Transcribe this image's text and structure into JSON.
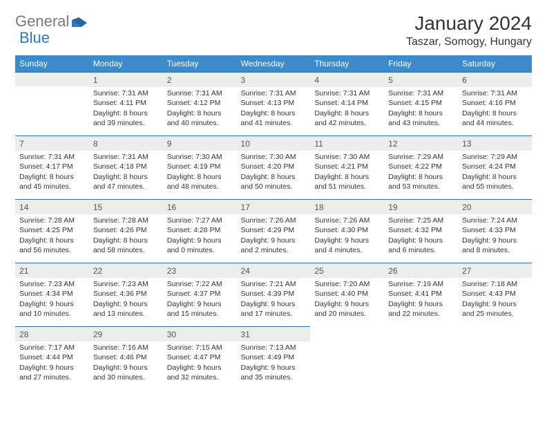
{
  "brand": {
    "part1": "General",
    "part2": "Blue"
  },
  "title": "January 2024",
  "location": "Taszar, Somogy, Hungary",
  "colors": {
    "header_bg": "#3c8ac9",
    "rule": "#2f6ea5",
    "daynum_bg": "#eceded",
    "brand_gray": "#7a7a7a",
    "brand_blue": "#2f78bf"
  },
  "weekdays": [
    "Sunday",
    "Monday",
    "Tuesday",
    "Wednesday",
    "Thursday",
    "Friday",
    "Saturday"
  ],
  "weeks": [
    [
      null,
      {
        "n": "1",
        "sr": "Sunrise: 7:31 AM",
        "ss": "Sunset: 4:11 PM",
        "d1": "Daylight: 8 hours",
        "d2": "and 39 minutes."
      },
      {
        "n": "2",
        "sr": "Sunrise: 7:31 AM",
        "ss": "Sunset: 4:12 PM",
        "d1": "Daylight: 8 hours",
        "d2": "and 40 minutes."
      },
      {
        "n": "3",
        "sr": "Sunrise: 7:31 AM",
        "ss": "Sunset: 4:13 PM",
        "d1": "Daylight: 8 hours",
        "d2": "and 41 minutes."
      },
      {
        "n": "4",
        "sr": "Sunrise: 7:31 AM",
        "ss": "Sunset: 4:14 PM",
        "d1": "Daylight: 8 hours",
        "d2": "and 42 minutes."
      },
      {
        "n": "5",
        "sr": "Sunrise: 7:31 AM",
        "ss": "Sunset: 4:15 PM",
        "d1": "Daylight: 8 hours",
        "d2": "and 43 minutes."
      },
      {
        "n": "6",
        "sr": "Sunrise: 7:31 AM",
        "ss": "Sunset: 4:16 PM",
        "d1": "Daylight: 8 hours",
        "d2": "and 44 minutes."
      }
    ],
    [
      {
        "n": "7",
        "sr": "Sunrise: 7:31 AM",
        "ss": "Sunset: 4:17 PM",
        "d1": "Daylight: 8 hours",
        "d2": "and 45 minutes."
      },
      {
        "n": "8",
        "sr": "Sunrise: 7:31 AM",
        "ss": "Sunset: 4:18 PM",
        "d1": "Daylight: 8 hours",
        "d2": "and 47 minutes."
      },
      {
        "n": "9",
        "sr": "Sunrise: 7:30 AM",
        "ss": "Sunset: 4:19 PM",
        "d1": "Daylight: 8 hours",
        "d2": "and 48 minutes."
      },
      {
        "n": "10",
        "sr": "Sunrise: 7:30 AM",
        "ss": "Sunset: 4:20 PM",
        "d1": "Daylight: 8 hours",
        "d2": "and 50 minutes."
      },
      {
        "n": "11",
        "sr": "Sunrise: 7:30 AM",
        "ss": "Sunset: 4:21 PM",
        "d1": "Daylight: 8 hours",
        "d2": "and 51 minutes."
      },
      {
        "n": "12",
        "sr": "Sunrise: 7:29 AM",
        "ss": "Sunset: 4:22 PM",
        "d1": "Daylight: 8 hours",
        "d2": "and 53 minutes."
      },
      {
        "n": "13",
        "sr": "Sunrise: 7:29 AM",
        "ss": "Sunset: 4:24 PM",
        "d1": "Daylight: 8 hours",
        "d2": "and 55 minutes."
      }
    ],
    [
      {
        "n": "14",
        "sr": "Sunrise: 7:28 AM",
        "ss": "Sunset: 4:25 PM",
        "d1": "Daylight: 8 hours",
        "d2": "and 56 minutes."
      },
      {
        "n": "15",
        "sr": "Sunrise: 7:28 AM",
        "ss": "Sunset: 4:26 PM",
        "d1": "Daylight: 8 hours",
        "d2": "and 58 minutes."
      },
      {
        "n": "16",
        "sr": "Sunrise: 7:27 AM",
        "ss": "Sunset: 4:28 PM",
        "d1": "Daylight: 9 hours",
        "d2": "and 0 minutes."
      },
      {
        "n": "17",
        "sr": "Sunrise: 7:26 AM",
        "ss": "Sunset: 4:29 PM",
        "d1": "Daylight: 9 hours",
        "d2": "and 2 minutes."
      },
      {
        "n": "18",
        "sr": "Sunrise: 7:26 AM",
        "ss": "Sunset: 4:30 PM",
        "d1": "Daylight: 9 hours",
        "d2": "and 4 minutes."
      },
      {
        "n": "19",
        "sr": "Sunrise: 7:25 AM",
        "ss": "Sunset: 4:32 PM",
        "d1": "Daylight: 9 hours",
        "d2": "and 6 minutes."
      },
      {
        "n": "20",
        "sr": "Sunrise: 7:24 AM",
        "ss": "Sunset: 4:33 PM",
        "d1": "Daylight: 9 hours",
        "d2": "and 8 minutes."
      }
    ],
    [
      {
        "n": "21",
        "sr": "Sunrise: 7:23 AM",
        "ss": "Sunset: 4:34 PM",
        "d1": "Daylight: 9 hours",
        "d2": "and 10 minutes."
      },
      {
        "n": "22",
        "sr": "Sunrise: 7:23 AM",
        "ss": "Sunset: 4:36 PM",
        "d1": "Daylight: 9 hours",
        "d2": "and 13 minutes."
      },
      {
        "n": "23",
        "sr": "Sunrise: 7:22 AM",
        "ss": "Sunset: 4:37 PM",
        "d1": "Daylight: 9 hours",
        "d2": "and 15 minutes."
      },
      {
        "n": "24",
        "sr": "Sunrise: 7:21 AM",
        "ss": "Sunset: 4:39 PM",
        "d1": "Daylight: 9 hours",
        "d2": "and 17 minutes."
      },
      {
        "n": "25",
        "sr": "Sunrise: 7:20 AM",
        "ss": "Sunset: 4:40 PM",
        "d1": "Daylight: 9 hours",
        "d2": "and 20 minutes."
      },
      {
        "n": "26",
        "sr": "Sunrise: 7:19 AM",
        "ss": "Sunset: 4:41 PM",
        "d1": "Daylight: 9 hours",
        "d2": "and 22 minutes."
      },
      {
        "n": "27",
        "sr": "Sunrise: 7:18 AM",
        "ss": "Sunset: 4:43 PM",
        "d1": "Daylight: 9 hours",
        "d2": "and 25 minutes."
      }
    ],
    [
      {
        "n": "28",
        "sr": "Sunrise: 7:17 AM",
        "ss": "Sunset: 4:44 PM",
        "d1": "Daylight: 9 hours",
        "d2": "and 27 minutes."
      },
      {
        "n": "29",
        "sr": "Sunrise: 7:16 AM",
        "ss": "Sunset: 4:46 PM",
        "d1": "Daylight: 9 hours",
        "d2": "and 30 minutes."
      },
      {
        "n": "30",
        "sr": "Sunrise: 7:15 AM",
        "ss": "Sunset: 4:47 PM",
        "d1": "Daylight: 9 hours",
        "d2": "and 32 minutes."
      },
      {
        "n": "31",
        "sr": "Sunrise: 7:13 AM",
        "ss": "Sunset: 4:49 PM",
        "d1": "Daylight: 9 hours",
        "d2": "and 35 minutes."
      },
      null,
      null,
      null
    ]
  ]
}
